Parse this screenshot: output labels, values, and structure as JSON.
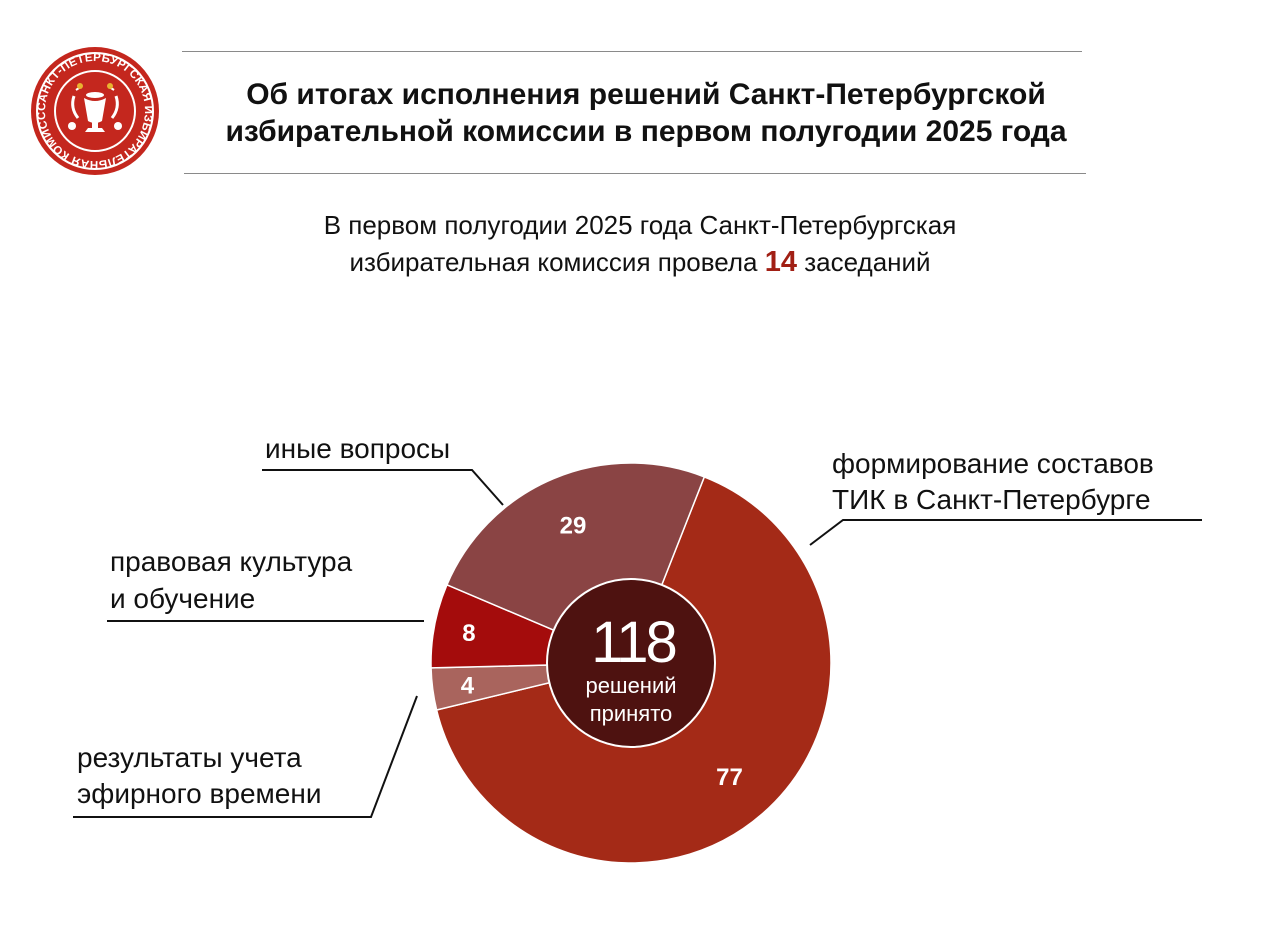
{
  "header": {
    "title_line1": "Об итогах исполнения решений Санкт-Петербургской",
    "title_line2": "избирательной комиссии в первом полугодии 2025 года"
  },
  "intro": {
    "line1": "В первом полугодии 2025 года Санкт-Петербургская",
    "line2_before": "избирательная комиссия провела",
    "meetings_count": "14",
    "line2_after": "заседаний"
  },
  "logo": {
    "text": "САНКТ-ПЕТЕРБУРГСКАЯ ИЗБИРАТЕЛЬНАЯ КОМИССИЯ",
    "color": "#c4271e"
  },
  "chart_data": {
    "type": "pie",
    "variant": "donut",
    "center_value": "118",
    "center_label_line1": "решений",
    "center_label_line2": "принято",
    "slices": [
      {
        "label_line1": "формирование составов",
        "label_line2": "ТИК в Санкт-Петербурге",
        "value": 77,
        "color": "#a42a17"
      },
      {
        "label_line1": "результаты учета",
        "label_line2": "эфирного времени",
        "value": 4,
        "color": "#a9645d"
      },
      {
        "label_line1": "правовая культура",
        "label_line2": "и обучение",
        "value": 8,
        "color": "#a40c0c"
      },
      {
        "label_line1": "иные вопросы",
        "label_line2": "",
        "value": 29,
        "color": "#8a4444"
      }
    ],
    "center_color": "#4e1210"
  }
}
